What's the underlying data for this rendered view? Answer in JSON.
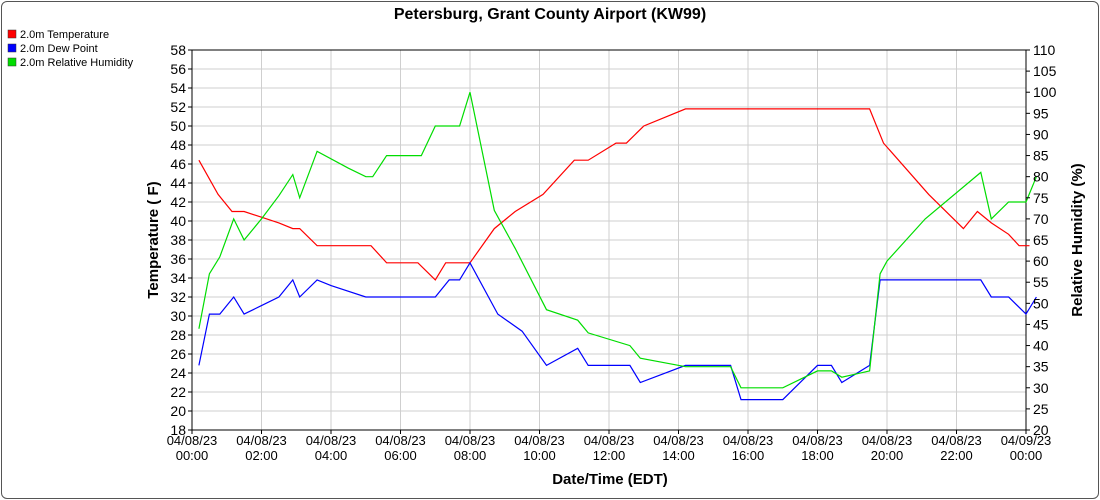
{
  "chart_data": {
    "type": "line",
    "title": "Petersburg, Grant County Airport (KW99)",
    "xlabel": "Date/Time (EDT)",
    "ylabel": "Temperature ( F)",
    "y2label": "Relative Humidity (%)",
    "ylim": [
      18,
      58
    ],
    "y2lim": [
      20,
      110
    ],
    "xlim": [
      0,
      24
    ],
    "yticks": [
      18,
      20,
      22,
      24,
      26,
      28,
      30,
      32,
      34,
      36,
      38,
      40,
      42,
      44,
      46,
      48,
      50,
      52,
      54,
      56,
      58
    ],
    "y2ticks": [
      20,
      25,
      30,
      35,
      40,
      45,
      50,
      55,
      60,
      65,
      70,
      75,
      80,
      85,
      90,
      95,
      100,
      105,
      110
    ],
    "xticks": [
      {
        "x": 0,
        "date": "04/08/23",
        "time": "00:00"
      },
      {
        "x": 2,
        "date": "04/08/23",
        "time": "02:00"
      },
      {
        "x": 4,
        "date": "04/08/23",
        "time": "04:00"
      },
      {
        "x": 6,
        "date": "04/08/23",
        "time": "06:00"
      },
      {
        "x": 8,
        "date": "04/08/23",
        "time": "08:00"
      },
      {
        "x": 10,
        "date": "04/08/23",
        "time": "10:00"
      },
      {
        "x": 12,
        "date": "04/08/23",
        "time": "12:00"
      },
      {
        "x": 14,
        "date": "04/08/23",
        "time": "14:00"
      },
      {
        "x": 16,
        "date": "04/08/23",
        "time": "16:00"
      },
      {
        "x": 18,
        "date": "04/08/23",
        "time": "18:00"
      },
      {
        "x": 20,
        "date": "04/08/23",
        "time": "20:00"
      },
      {
        "x": 22,
        "date": "04/08/23",
        "time": "22:00"
      },
      {
        "x": 24,
        "date": "04/09/23",
        "time": "00:00"
      }
    ],
    "grid": true,
    "legend_position": "top-left",
    "series": [
      {
        "name": "2.0m Temperature",
        "axis": "left",
        "color": "#ff0000",
        "points": [
          [
            0.2,
            46.4
          ],
          [
            0.75,
            42.8
          ],
          [
            1.15,
            41
          ],
          [
            1.5,
            41
          ],
          [
            2.0,
            40.4
          ],
          [
            2.5,
            39.8
          ],
          [
            2.9,
            39.2
          ],
          [
            3.1,
            39.2
          ],
          [
            3.6,
            37.4
          ],
          [
            4.0,
            37.4
          ],
          [
            4.5,
            37.4
          ],
          [
            5.0,
            37.4
          ],
          [
            5.15,
            37.4
          ],
          [
            5.6,
            35.6
          ],
          [
            6.0,
            35.6
          ],
          [
            6.5,
            35.6
          ],
          [
            7.0,
            33.8
          ],
          [
            7.3,
            35.6
          ],
          [
            8.0,
            35.6
          ],
          [
            8.7,
            39.2
          ],
          [
            9.3,
            41
          ],
          [
            10.1,
            42.8
          ],
          [
            11.0,
            46.4
          ],
          [
            11.4,
            46.4
          ],
          [
            12.2,
            48.2
          ],
          [
            12.5,
            48.2
          ],
          [
            13.0,
            50
          ],
          [
            14.2,
            51.8
          ],
          [
            19.2,
            51.8
          ],
          [
            19.5,
            51.8
          ],
          [
            19.9,
            48.2
          ],
          [
            21.2,
            42.8
          ],
          [
            22.2,
            39.2
          ],
          [
            22.6,
            41
          ],
          [
            23.0,
            39.8
          ],
          [
            23.5,
            38.6
          ],
          [
            23.8,
            37.4
          ],
          [
            24.1,
            37.4
          ]
        ]
      },
      {
        "name": "2.0m Dew Point",
        "axis": "left",
        "color": "#0000ff",
        "points": [
          [
            0.2,
            24.8
          ],
          [
            0.5,
            30.2
          ],
          [
            0.8,
            30.2
          ],
          [
            1.2,
            32
          ],
          [
            1.5,
            30.2
          ],
          [
            2.0,
            31.1
          ],
          [
            2.5,
            32
          ],
          [
            2.9,
            33.8
          ],
          [
            3.1,
            32
          ],
          [
            3.6,
            33.8
          ],
          [
            4.0,
            33.2
          ],
          [
            5.0,
            32
          ],
          [
            5.2,
            32
          ],
          [
            7.0,
            32
          ],
          [
            7.4,
            33.8
          ],
          [
            7.7,
            33.8
          ],
          [
            8.0,
            35.6
          ],
          [
            8.8,
            30.2
          ],
          [
            9.5,
            28.4
          ],
          [
            10.2,
            24.8
          ],
          [
            11.1,
            26.6
          ],
          [
            11.4,
            24.8
          ],
          [
            12.6,
            24.8
          ],
          [
            12.9,
            23
          ],
          [
            14.2,
            24.8
          ],
          [
            15.5,
            24.8
          ],
          [
            15.8,
            21.2
          ],
          [
            17.0,
            21.2
          ],
          [
            18.0,
            24.8
          ],
          [
            18.4,
            24.8
          ],
          [
            18.7,
            23
          ],
          [
            19.5,
            24.8
          ],
          [
            19.8,
            33.8
          ],
          [
            21.1,
            33.8
          ],
          [
            22.7,
            33.8
          ],
          [
            23.0,
            32
          ],
          [
            23.5,
            32
          ],
          [
            24.0,
            30.2
          ],
          [
            24.3,
            32
          ]
        ]
      },
      {
        "name": "2.0m Relative Humidity",
        "axis": "right",
        "color": "#00dd00",
        "points": [
          [
            0.2,
            44
          ],
          [
            0.5,
            57
          ],
          [
            0.8,
            61
          ],
          [
            1.2,
            70
          ],
          [
            1.5,
            65
          ],
          [
            2.0,
            70
          ],
          [
            2.5,
            75.5
          ],
          [
            2.9,
            80.5
          ],
          [
            3.1,
            75
          ],
          [
            3.6,
            86
          ],
          [
            4.5,
            82
          ],
          [
            5.0,
            80
          ],
          [
            5.2,
            80
          ],
          [
            5.6,
            85
          ],
          [
            6.0,
            85
          ],
          [
            6.6,
            85
          ],
          [
            7.0,
            92
          ],
          [
            7.3,
            92
          ],
          [
            7.7,
            92
          ],
          [
            8.0,
            100
          ],
          [
            8.7,
            72
          ],
          [
            9.3,
            63
          ],
          [
            10.2,
            48.5
          ],
          [
            11.1,
            46
          ],
          [
            11.4,
            43
          ],
          [
            12.6,
            40
          ],
          [
            12.9,
            37
          ],
          [
            14.2,
            35
          ],
          [
            15.5,
            35
          ],
          [
            15.8,
            30
          ],
          [
            17.0,
            30
          ],
          [
            18.0,
            34
          ],
          [
            18.4,
            34
          ],
          [
            18.7,
            32.5
          ],
          [
            19.5,
            34
          ],
          [
            19.8,
            57
          ],
          [
            20.0,
            60
          ],
          [
            21.1,
            70
          ],
          [
            22.7,
            81
          ],
          [
            23.0,
            70
          ],
          [
            23.5,
            74
          ],
          [
            24.0,
            74
          ],
          [
            24.3,
            80
          ]
        ]
      }
    ]
  }
}
